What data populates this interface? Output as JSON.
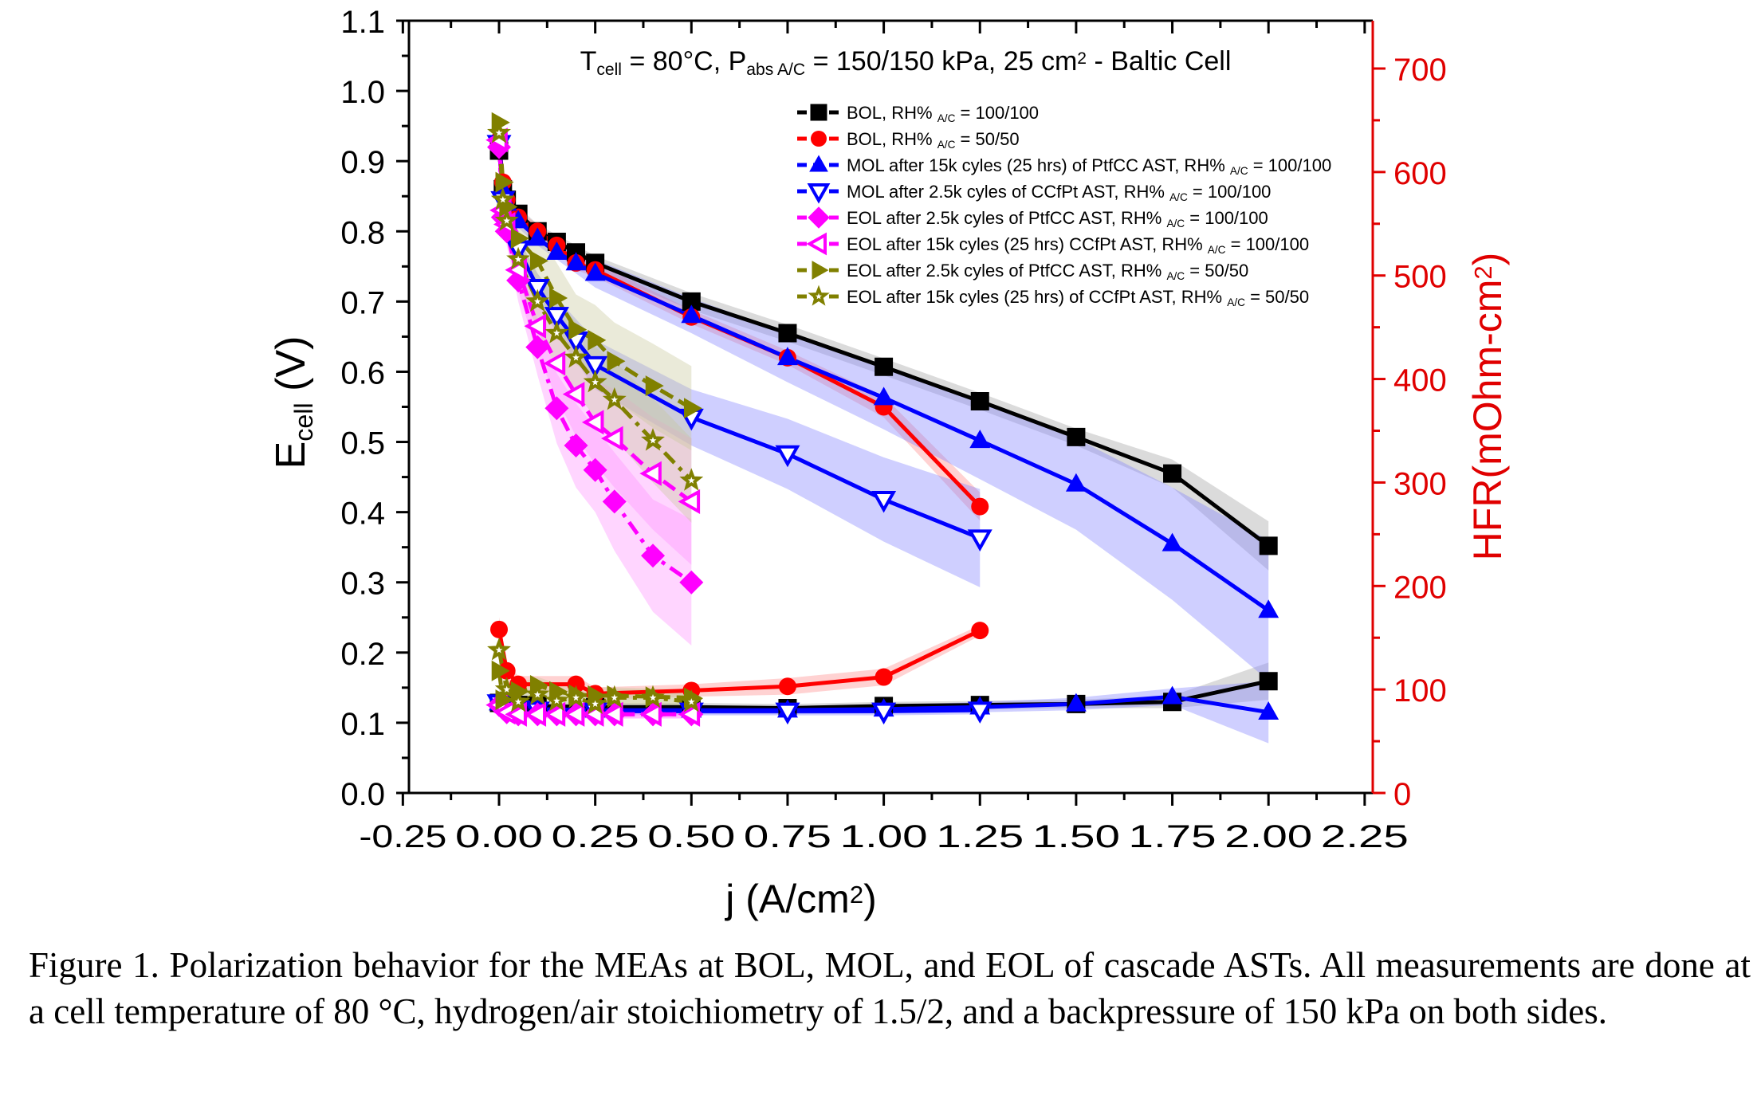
{
  "chart_data": {
    "type": "line",
    "title": "T_cell = 80°C, P_abs A/C = 150/150 kPa, 25 cm² - Baltic Cell",
    "title_parts": [
      {
        "text": "T",
        "style": "normal"
      },
      {
        "text": "cell",
        "style": "sub"
      },
      {
        "text": " = 80°C, P",
        "style": "normal"
      },
      {
        "text": "abs A/C",
        "style": "sub"
      },
      {
        "text": " = 150/150 kPa, 25 cm",
        "style": "normal"
      },
      {
        "text": "2",
        "style": "sup"
      },
      {
        "text": " - Baltic Cell",
        "style": "normal"
      }
    ],
    "xlabel": "j (A/cm²)",
    "xlabel_parts": [
      {
        "text": "j (A/cm",
        "style": "normal"
      },
      {
        "text": "2",
        "style": "sup"
      },
      {
        "text": ")",
        "style": "normal"
      }
    ],
    "ylabel": "E_cell (V)",
    "ylabel_parts": [
      {
        "text": "E",
        "style": "normal"
      },
      {
        "text": "cell",
        "style": "sub"
      },
      {
        "text": " (V)",
        "style": "normal"
      }
    ],
    "y2label": "HFR(mOhm-cm²)",
    "y2label_parts": [
      {
        "text": "HFR(mOhm-cm",
        "style": "normal"
      },
      {
        "text": "2",
        "style": "sup"
      },
      {
        "text": ")",
        "style": "normal"
      }
    ],
    "xlim": [
      -0.25,
      2.25
    ],
    "ylim": [
      0.0,
      1.1
    ],
    "y2lim": [
      0,
      733
    ],
    "xticks": [
      "-0.25",
      "0.00",
      "0.25",
      "0.50",
      "0.75",
      "1.00",
      "1.25",
      "1.50",
      "1.75",
      "2.00",
      "2.25"
    ],
    "xtick_values": [
      -0.25,
      0,
      0.25,
      0.5,
      0.75,
      1.0,
      1.25,
      1.5,
      1.75,
      2.0,
      2.25
    ],
    "yticks": [
      "0.0",
      "0.1",
      "0.2",
      "0.3",
      "0.4",
      "0.5",
      "0.6",
      "0.7",
      "0.8",
      "0.9",
      "1.0",
      "1.1"
    ],
    "ytick_values": [
      0,
      0.1,
      0.2,
      0.3,
      0.4,
      0.5,
      0.6,
      0.7,
      0.8,
      0.9,
      1.0,
      1.1
    ],
    "y2ticks": [
      "0",
      "100",
      "200",
      "300",
      "400",
      "500",
      "600",
      "700"
    ],
    "y2tick_values": [
      0,
      100,
      200,
      300,
      400,
      500,
      600,
      700
    ],
    "grid": false,
    "legend_position": "top-right",
    "axis2_color": "#e00000",
    "series": [
      {
        "name": "BOL, RH% A/C = 100/100",
        "legend_parts": [
          {
            "text": "BOL, RH% ",
            "style": "normal"
          },
          {
            "text": "A/C",
            "style": "sub"
          },
          {
            "text": " = 100/100",
            "style": "normal"
          }
        ],
        "color": "#000000",
        "marker": "square",
        "filled": true,
        "dash": "solid",
        "band_color": "#a0a0a0",
        "x": [
          0.0,
          0.01,
          0.02,
          0.05,
          0.1,
          0.15,
          0.2,
          0.25,
          0.5,
          0.75,
          1.0,
          1.25,
          1.5,
          1.75,
          2.0
        ],
        "y": [
          0.915,
          0.86,
          0.845,
          0.825,
          0.8,
          0.785,
          0.77,
          0.755,
          0.7,
          0.655,
          0.607,
          0.558,
          0.507,
          0.455,
          0.352
        ],
        "band": [
          0.01,
          0.01,
          0.01,
          0.01,
          0.01,
          0.01,
          0.01,
          0.01,
          0.012,
          0.012,
          0.012,
          0.012,
          0.012,
          0.02,
          0.035
        ],
        "hfr_x": [
          0.0,
          0.05,
          0.1,
          0.25,
          0.5,
          0.75,
          1.0,
          1.25,
          1.5,
          1.75,
          2.0
        ],
        "hfr": [
          87,
          85,
          84,
          83,
          83,
          82,
          84,
          85,
          86,
          88,
          108
        ],
        "hfr_band": [
          4,
          4,
          4,
          4,
          4,
          4,
          4,
          4,
          4,
          6,
          18
        ]
      },
      {
        "name": "BOL, RH% A/C = 50/50",
        "legend_parts": [
          {
            "text": "BOL, RH% ",
            "style": "normal"
          },
          {
            "text": "A/C",
            "style": "sub"
          },
          {
            "text": " = 50/50",
            "style": "normal"
          }
        ],
        "color": "#ff0000",
        "marker": "circle",
        "filled": true,
        "dash": "solid",
        "band_color": "#ff8a8a",
        "x": [
          0.0,
          0.01,
          0.02,
          0.05,
          0.1,
          0.15,
          0.2,
          0.25,
          0.5,
          0.75,
          1.0,
          1.25
        ],
        "y": [
          0.93,
          0.87,
          0.845,
          0.82,
          0.8,
          0.78,
          0.755,
          0.745,
          0.678,
          0.62,
          0.55,
          0.408
        ],
        "band": [
          0.01,
          0.01,
          0.01,
          0.01,
          0.01,
          0.01,
          0.01,
          0.01,
          0.01,
          0.01,
          0.015,
          0.02
        ],
        "hfr_x": [
          0.0,
          0.02,
          0.05,
          0.2,
          0.25,
          0.5,
          0.75,
          1.0,
          1.25
        ],
        "hfr": [
          158,
          118,
          105,
          105,
          96,
          99,
          103,
          112,
          157
        ],
        "hfr_band": [
          12,
          8,
          8,
          8,
          6,
          6,
          8,
          8,
          5
        ]
      },
      {
        "name": "MOL after 15k cyles (25 hrs) of PtfCC AST, RH% A/C = 100/100",
        "legend_parts": [
          {
            "text": "MOL after 15k cyles (25 hrs) of PtfCC AST, RH% ",
            "style": "normal"
          },
          {
            "text": "A/C",
            "style": "sub"
          },
          {
            "text": " = 100/100",
            "style": "normal"
          }
        ],
        "color": "#0000ff",
        "marker": "triangle-up",
        "filled": true,
        "dash": "solid",
        "band_color": "#8080ff",
        "x": [
          0.0,
          0.01,
          0.02,
          0.05,
          0.1,
          0.15,
          0.2,
          0.25,
          0.5,
          0.75,
          1.0,
          1.25,
          1.5,
          1.75,
          2.0
        ],
        "y": [
          0.93,
          0.86,
          0.84,
          0.815,
          0.79,
          0.77,
          0.755,
          0.74,
          0.68,
          0.62,
          0.563,
          0.502,
          0.44,
          0.355,
          0.26
        ],
        "band": [
          0.01,
          0.01,
          0.01,
          0.01,
          0.01,
          0.01,
          0.015,
          0.02,
          0.025,
          0.035,
          0.045,
          0.055,
          0.065,
          0.08,
          0.1
        ],
        "hfr_x": [
          0.0,
          0.05,
          0.1,
          0.25,
          0.5,
          0.75,
          1.0,
          1.25,
          1.5,
          1.75,
          2.0
        ],
        "hfr": [
          87,
          82,
          81,
          80,
          80,
          80,
          81,
          83,
          86,
          93,
          78
        ],
        "hfr_band": [
          4,
          4,
          4,
          4,
          4,
          4,
          4,
          5,
          6,
          8,
          30
        ]
      },
      {
        "name": "MOL after 2.5k cyles of CCfPt AST, RH% A/C = 100/100",
        "legend_parts": [
          {
            "text": "MOL after 2.5k cyles of CCfPt AST, RH% ",
            "style": "normal"
          },
          {
            "text": "A/C",
            "style": "sub"
          },
          {
            "text": " = 100/100",
            "style": "normal"
          }
        ],
        "color": "#0000ff",
        "marker": "triangle-down",
        "filled": false,
        "dash": "solid",
        "band_color": "#8080ff",
        "x": [
          0.0,
          0.01,
          0.02,
          0.05,
          0.1,
          0.15,
          0.2,
          0.25,
          0.5,
          0.75,
          1.0,
          1.25
        ],
        "y": [
          0.925,
          0.845,
          0.81,
          0.775,
          0.72,
          0.68,
          0.645,
          0.61,
          0.535,
          0.483,
          0.418,
          0.363
        ],
        "band": [
          0.01,
          0.01,
          0.01,
          0.015,
          0.02,
          0.025,
          0.03,
          0.035,
          0.04,
          0.05,
          0.06,
          0.07
        ],
        "hfr_x": [
          0.0,
          0.05,
          0.1,
          0.25,
          0.5,
          0.75,
          1.0,
          1.25
        ],
        "hfr": [
          87,
          81,
          80,
          79,
          79,
          79,
          79,
          80
        ],
        "hfr_band": [
          4,
          4,
          4,
          4,
          4,
          4,
          4,
          4
        ]
      },
      {
        "name": "EOL after 2.5k cyles of PtfCC AST, RH% A/C = 100/100",
        "legend_parts": [
          {
            "text": "EOL after 2.5k cyles of PtfCC AST, RH% ",
            "style": "normal"
          },
          {
            "text": "A/C",
            "style": "sub"
          },
          {
            "text": " = 100/100",
            "style": "normal"
          }
        ],
        "color": "#ff00ff",
        "marker": "diamond",
        "filled": true,
        "dash": "dashdot",
        "band_color": "#ff90ff",
        "x": [
          0.0,
          0.01,
          0.02,
          0.05,
          0.1,
          0.15,
          0.2,
          0.25,
          0.3,
          0.4,
          0.5
        ],
        "y": [
          0.92,
          0.82,
          0.8,
          0.73,
          0.635,
          0.548,
          0.495,
          0.46,
          0.415,
          0.338,
          0.3
        ],
        "band": [
          0.01,
          0.015,
          0.02,
          0.03,
          0.04,
          0.05,
          0.06,
          0.06,
          0.07,
          0.08,
          0.09
        ],
        "hfr_x": [
          0.0,
          0.02,
          0.05,
          0.1,
          0.15,
          0.2,
          0.25,
          0.3,
          0.4,
          0.5
        ],
        "hfr": [
          85,
          78,
          76,
          76,
          76,
          76,
          76,
          76,
          76,
          76
        ],
        "hfr_band": [
          4,
          4,
          4,
          4,
          4,
          4,
          4,
          4,
          4,
          4
        ]
      },
      {
        "name": "EOL after 15k cyles (25 hrs) CCfPt AST, RH% A/C = 100/100",
        "legend_parts": [
          {
            "text": "EOL after 15k cyles (25 hrs) CCfPt AST, RH% ",
            "style": "normal"
          },
          {
            "text": "A/C",
            "style": "sub"
          },
          {
            "text": " = 100/100",
            "style": "normal"
          }
        ],
        "color": "#ff00ff",
        "marker": "triangle-left",
        "filled": false,
        "dash": "dashed",
        "band_color": "#ff90ff",
        "x": [
          0.0,
          0.01,
          0.02,
          0.05,
          0.1,
          0.15,
          0.2,
          0.25,
          0.3,
          0.4,
          0.5
        ],
        "y": [
          0.93,
          0.83,
          0.81,
          0.745,
          0.665,
          0.612,
          0.568,
          0.528,
          0.505,
          0.455,
          0.415
        ],
        "band": [
          0.01,
          0.015,
          0.02,
          0.03,
          0.04,
          0.05,
          0.06,
          0.06,
          0.07,
          0.08,
          0.09
        ],
        "hfr_x": [
          0.0,
          0.02,
          0.05,
          0.1,
          0.15,
          0.2,
          0.25,
          0.3,
          0.4,
          0.5
        ],
        "hfr": [
          85,
          78,
          76,
          76,
          76,
          76,
          76,
          76,
          76,
          76
        ],
        "hfr_band": [
          4,
          4,
          4,
          4,
          4,
          4,
          4,
          4,
          4,
          4
        ]
      },
      {
        "name": "EOL after 2.5k cyles of PtfCC AST, RH% A/C = 50/50",
        "legend_parts": [
          {
            "text": "EOL after 2.5k cyles of PtfCC AST, RH% ",
            "style": "normal"
          },
          {
            "text": "A/C",
            "style": "sub"
          },
          {
            "text": " = 50/50",
            "style": "normal"
          }
        ],
        "color": "#808000",
        "marker": "triangle-right",
        "filled": true,
        "dash": "dashed",
        "band_color": "#c8c89a",
        "x": [
          0.0,
          0.01,
          0.02,
          0.05,
          0.1,
          0.15,
          0.2,
          0.25,
          0.3,
          0.4,
          0.5
        ],
        "y": [
          0.955,
          0.87,
          0.835,
          0.79,
          0.758,
          0.705,
          0.66,
          0.645,
          0.615,
          0.58,
          0.548
        ],
        "band": [
          0.01,
          0.015,
          0.02,
          0.03,
          0.04,
          0.05,
          0.05,
          0.05,
          0.055,
          0.06,
          0.06
        ],
        "hfr_x": [
          0.0,
          0.01,
          0.05,
          0.1,
          0.15,
          0.2,
          0.25,
          0.3,
          0.4,
          0.5
        ],
        "hfr": [
          118,
          90,
          98,
          104,
          98,
          95,
          94,
          94,
          93,
          92
        ],
        "hfr_band": [
          40,
          8,
          8,
          8,
          8,
          8,
          8,
          8,
          8,
          8
        ]
      },
      {
        "name": "EOL after 15k cyles (25 hrs) of CCfPt AST, RH% A/C = 50/50",
        "legend_parts": [
          {
            "text": "EOL after 15k cyles (25 hrs) of CCfPt AST, RH% ",
            "style": "normal"
          },
          {
            "text": "A/C",
            "style": "sub"
          },
          {
            "text": " = 50/50",
            "style": "normal"
          }
        ],
        "color": "#808000",
        "marker": "star",
        "filled": true,
        "dash": "dashdot",
        "band_color": "#c8c89a",
        "x": [
          0.0,
          0.01,
          0.02,
          0.05,
          0.1,
          0.15,
          0.2,
          0.25,
          0.3,
          0.4,
          0.5
        ],
        "y": [
          0.94,
          0.845,
          0.815,
          0.76,
          0.7,
          0.655,
          0.62,
          0.585,
          0.56,
          0.502,
          0.445
        ],
        "band": [
          0.01,
          0.015,
          0.02,
          0.03,
          0.04,
          0.05,
          0.05,
          0.05,
          0.055,
          0.06,
          0.06
        ],
        "hfr_x": [
          0.0,
          0.02,
          0.05,
          0.1,
          0.15,
          0.2,
          0.25,
          0.3,
          0.4,
          0.5
        ],
        "hfr": [
          138,
          100,
          88,
          95,
          89,
          92,
          86,
          92,
          92,
          88
        ],
        "hfr_band": [
          30,
          10,
          8,
          8,
          8,
          8,
          8,
          8,
          8,
          8
        ]
      }
    ]
  },
  "caption": "Figure 1. Polarization behavior for the MEAs at BOL, MOL, and EOL of cascade ASTs. All measurements are done at a cell temperature of 80 °C, hydrogen/air stoichiometry of 1.5/2, and a backpressure of 150 kPa on both sides."
}
